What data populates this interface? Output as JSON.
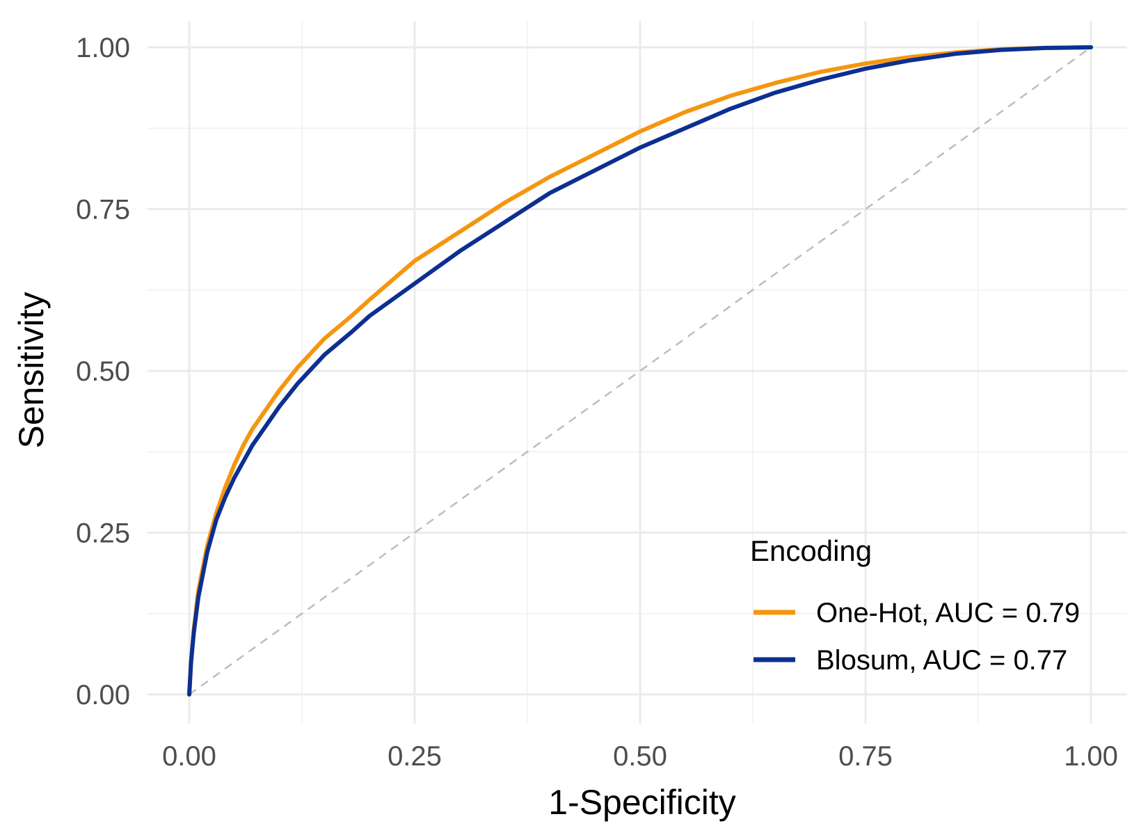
{
  "chart_data": {
    "type": "line",
    "title": "",
    "xlabel": "1-Specificity",
    "ylabel": "Sensitivity",
    "xlim": [
      0,
      1
    ],
    "ylim": [
      0,
      1
    ],
    "x_ticks": [
      "0.00",
      "0.25",
      "0.50",
      "0.75",
      "1.00"
    ],
    "y_ticks": [
      "0.00",
      "0.25",
      "0.50",
      "0.75",
      "1.00"
    ],
    "grid": true,
    "legend": {
      "title": "Encoding",
      "position": "bottom-right inside"
    },
    "reference_line": {
      "style": "dashed",
      "color": "#bdbdbd",
      "from": [
        0,
        0
      ],
      "to": [
        1,
        1
      ]
    },
    "series": [
      {
        "name": "One-Hot, AUC = 0.79",
        "color": "#f5960f",
        "x": [
          0,
          0.002,
          0.005,
          0.01,
          0.02,
          0.03,
          0.04,
          0.05,
          0.06,
          0.07,
          0.08,
          0.1,
          0.12,
          0.15,
          0.18,
          0.2,
          0.25,
          0.3,
          0.35,
          0.4,
          0.45,
          0.5,
          0.55,
          0.6,
          0.65,
          0.7,
          0.75,
          0.8,
          0.85,
          0.9,
          0.95,
          1.0
        ],
        "y": [
          0,
          0.05,
          0.1,
          0.16,
          0.23,
          0.28,
          0.32,
          0.355,
          0.385,
          0.41,
          0.43,
          0.47,
          0.505,
          0.55,
          0.585,
          0.61,
          0.67,
          0.715,
          0.76,
          0.8,
          0.835,
          0.87,
          0.9,
          0.925,
          0.945,
          0.962,
          0.975,
          0.985,
          0.992,
          0.997,
          0.999,
          1.0
        ]
      },
      {
        "name": "Blosum, AUC = 0.77",
        "color": "#0c2f91",
        "x": [
          0,
          0.002,
          0.005,
          0.01,
          0.02,
          0.03,
          0.04,
          0.05,
          0.06,
          0.07,
          0.08,
          0.1,
          0.12,
          0.15,
          0.18,
          0.2,
          0.25,
          0.3,
          0.35,
          0.4,
          0.45,
          0.5,
          0.55,
          0.6,
          0.65,
          0.7,
          0.75,
          0.8,
          0.85,
          0.9,
          0.95,
          1.0
        ],
        "y": [
          0,
          0.05,
          0.095,
          0.15,
          0.22,
          0.27,
          0.305,
          0.335,
          0.36,
          0.385,
          0.405,
          0.445,
          0.48,
          0.525,
          0.56,
          0.585,
          0.635,
          0.685,
          0.73,
          0.775,
          0.81,
          0.845,
          0.875,
          0.905,
          0.93,
          0.95,
          0.967,
          0.98,
          0.99,
          0.996,
          0.999,
          1.0
        ]
      }
    ]
  }
}
